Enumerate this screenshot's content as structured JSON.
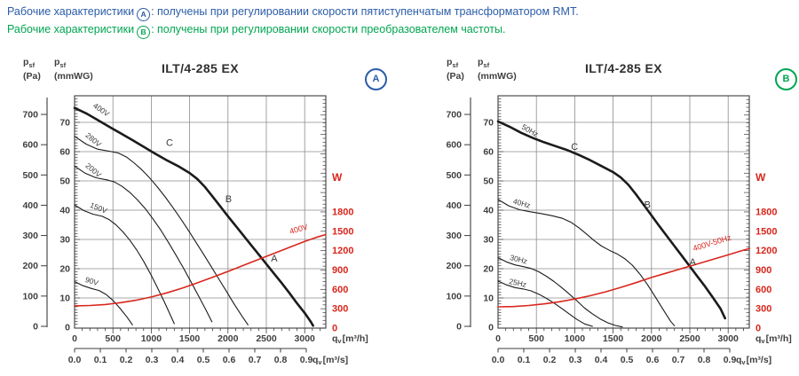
{
  "note": {
    "lines": [
      {
        "prefix": "Рабочие характеристики",
        "badge": "A",
        "suffix": ": получены при регулировании скорости пятиступенчатым трансформатором RMT.",
        "color": "#2a5ca8"
      },
      {
        "prefix": "Рабочие характеристики",
        "badge": "B",
        "suffix": ": получены при регулировании скорости преобразователем частоты.",
        "color": "#00a551"
      }
    ]
  },
  "colors": {
    "blue": "#2a5ca8",
    "green": "#00a551",
    "red": "#d9261c",
    "curve_black": "#1b1b1b",
    "grid": "#8c8c8c",
    "axis": "#3c3c3c",
    "tick_label": "#3f3f3f",
    "curve_label": "#3a3a3a"
  },
  "chart_data": [
    {
      "title": "ILT/4-285 EX",
      "badge": "A",
      "badge_color": "#2a5ca8",
      "type": "line",
      "axes": {
        "pressure_pa": {
          "name": "p",
          "sub": "sf",
          "unit": "(Pa)",
          "ticks": [
            0,
            100,
            200,
            300,
            400,
            500,
            600,
            700
          ]
        },
        "pressure_mmwg": {
          "name": "p",
          "sub": "sf",
          "unit": "(mmWG)",
          "ticks": [
            0,
            10,
            20,
            30,
            40,
            50,
            60,
            70
          ]
        },
        "flow_m3h": {
          "q": "q",
          "qsub": "v",
          "unit": "[m³/h]",
          "ticks": [
            0,
            500,
            1000,
            1500,
            2000,
            2500,
            3000
          ]
        },
        "flow_m3s": {
          "q": "q",
          "qsub": "v",
          "unit": "[m³/s]",
          "ticks": [
            "0.0",
            "0.1",
            "0.2",
            "0.3",
            "0.4",
            "0.5",
            "0.6",
            "0.7",
            "0.8",
            "0.9"
          ]
        },
        "power_w": {
          "label": "W",
          "ticks": [
            0,
            300,
            600,
            900,
            1200,
            1500,
            1800
          ]
        }
      },
      "pressure_curves": [
        {
          "name": "90V",
          "bold": false,
          "label_at": [
            215,
            146
          ],
          "label_angle": 18,
          "points": [
            [
              0,
              153
            ],
            [
              110,
              139
            ],
            [
              220,
              130
            ],
            [
              320,
              123
            ],
            [
              410,
              110
            ],
            [
              500,
              90
            ],
            [
              590,
              64
            ],
            [
              680,
              35
            ],
            [
              755,
              8
            ]
          ]
        },
        {
          "name": "150V",
          "bold": false,
          "label_at": [
            300,
            392
          ],
          "label_angle": 22,
          "points": [
            [
              0,
              410
            ],
            [
              120,
              391
            ],
            [
              240,
              379
            ],
            [
              360,
              372
            ],
            [
              450,
              361
            ],
            [
              540,
              343
            ],
            [
              630,
              320
            ],
            [
              720,
              292
            ],
            [
              810,
              259
            ],
            [
              900,
              221
            ],
            [
              990,
              179
            ],
            [
              1080,
              133
            ],
            [
              1170,
              85
            ],
            [
              1250,
              40
            ],
            [
              1300,
              12
            ]
          ]
        },
        {
          "name": "200V",
          "bold": false,
          "label_at": [
            225,
            520
          ],
          "label_angle": 40,
          "points": [
            [
              0,
              540
            ],
            [
              140,
              516
            ],
            [
              280,
              501
            ],
            [
              420,
              494
            ],
            [
              520,
              487
            ],
            [
              620,
              472
            ],
            [
              720,
              452
            ],
            [
              820,
              427
            ],
            [
              920,
              398
            ],
            [
              1020,
              364
            ],
            [
              1120,
              327
            ],
            [
              1220,
              286
            ],
            [
              1320,
              243
            ],
            [
              1420,
              198
            ],
            [
              1520,
              151
            ],
            [
              1620,
              103
            ],
            [
              1720,
              54
            ],
            [
              1790,
              18
            ]
          ]
        },
        {
          "name": "280V",
          "bold": false,
          "label_at": [
            225,
            622
          ],
          "label_angle": 40,
          "points": [
            [
              0,
              640
            ],
            [
              150,
              614
            ],
            [
              300,
              597
            ],
            [
              450,
              590
            ],
            [
              570,
              584
            ],
            [
              680,
              570
            ],
            [
              780,
              550
            ],
            [
              880,
              527
            ],
            [
              980,
              500
            ],
            [
              1080,
              470
            ],
            [
              1180,
              437
            ],
            [
              1280,
              402
            ],
            [
              1380,
              365
            ],
            [
              1480,
              326
            ],
            [
              1580,
              286
            ],
            [
              1680,
              245
            ],
            [
              1780,
              204
            ],
            [
              1880,
              162
            ],
            [
              1980,
              120
            ],
            [
              2080,
              78
            ],
            [
              2180,
              38
            ],
            [
              2260,
              8
            ]
          ]
        },
        {
          "name": "400V",
          "bold": true,
          "label_at": [
            330,
            722
          ],
          "label_angle": 34,
          "points": [
            [
              0,
              735
            ],
            [
              150,
              717
            ],
            [
              300,
              695
            ],
            [
              450,
              672
            ],
            [
              600,
              650
            ],
            [
              750,
              628
            ],
            [
              900,
              605
            ],
            [
              1050,
              582
            ],
            [
              1200,
              560
            ],
            [
              1350,
              540
            ],
            [
              1500,
              517
            ],
            [
              1600,
              497
            ],
            [
              1700,
              470
            ],
            [
              1800,
              438
            ],
            [
              1900,
              405
            ],
            [
              2000,
              372
            ],
            [
              2100,
              340
            ],
            [
              2200,
              308
            ],
            [
              2300,
              276
            ],
            [
              2400,
              244
            ],
            [
              2500,
              212
            ],
            [
              2600,
              180
            ],
            [
              2700,
              148
            ],
            [
              2800,
              115
            ],
            [
              2900,
              80
            ],
            [
              3000,
              48
            ],
            [
              3080,
              18
            ],
            [
              3110,
              5
            ]
          ]
        }
      ],
      "power_curve": {
        "name": "400V",
        "label_at": [
          2930,
          1495
        ],
        "label_angle": -16,
        "points": [
          [
            0,
            345
          ],
          [
            200,
            350
          ],
          [
            400,
            366
          ],
          [
            600,
            394
          ],
          [
            800,
            432
          ],
          [
            1000,
            482
          ],
          [
            1200,
            545
          ],
          [
            1400,
            618
          ],
          [
            1600,
            700
          ],
          [
            1800,
            788
          ],
          [
            2000,
            878
          ],
          [
            2200,
            972
          ],
          [
            2400,
            1065
          ],
          [
            2600,
            1158
          ],
          [
            2800,
            1250
          ],
          [
            3000,
            1342
          ],
          [
            3150,
            1405
          ],
          [
            3270,
            1448
          ]
        ]
      },
      "op_points": [
        {
          "label": "C",
          "flow": 1180,
          "pa": 618
        },
        {
          "label": "B",
          "flow": 1950,
          "pa": 430
        },
        {
          "label": "A",
          "flow": 2545,
          "pa": 230
        }
      ]
    },
    {
      "title": "ILT/4-285 EX",
      "badge": "B",
      "badge_color": "#00a551",
      "type": "line",
      "axes": {
        "pressure_pa": {
          "name": "p",
          "sub": "sf",
          "unit": "(Pa)",
          "ticks": [
            0,
            100,
            200,
            300,
            400,
            500,
            600,
            700
          ]
        },
        "pressure_mmwg": {
          "name": "p",
          "sub": "sf",
          "unit": "(mmWG)",
          "ticks": [
            0,
            10,
            20,
            30,
            40,
            50,
            60,
            70
          ]
        },
        "flow_m3h": {
          "q": "q",
          "qsub": "v",
          "unit": "[m³/h]",
          "ticks": [
            0,
            500,
            1000,
            1500,
            2000,
            2500,
            3000
          ]
        },
        "flow_m3s": {
          "q": "q",
          "qsub": "v",
          "unit": "[m³/s]",
          "ticks": [
            "0.0",
            "0.1",
            "0.2",
            "0.3",
            "0.4",
            "0.5",
            "0.6",
            "0.7",
            "0.8",
            "0.9"
          ]
        },
        "power_w": {
          "label": "W",
          "ticks": [
            0,
            300,
            600,
            900,
            1200,
            1500,
            1800
          ]
        }
      },
      "pressure_curves": [
        {
          "name": "25Hz",
          "bold": false,
          "label_at": [
            250,
            140
          ],
          "label_angle": 12,
          "points": [
            [
              0,
              155
            ],
            [
              110,
              142
            ],
            [
              220,
              133
            ],
            [
              330,
              128
            ],
            [
              430,
              122
            ],
            [
              530,
              111
            ],
            [
              630,
              97
            ],
            [
              730,
              81
            ],
            [
              830,
              63
            ],
            [
              930,
              44
            ],
            [
              1030,
              26
            ],
            [
              1130,
              11
            ],
            [
              1230,
              3
            ]
          ]
        },
        {
          "name": "30Hz",
          "bold": false,
          "label_at": [
            260,
            219
          ],
          "label_angle": 14,
          "points": [
            [
              0,
              233
            ],
            [
              110,
              219
            ],
            [
              220,
              209
            ],
            [
              330,
              203
            ],
            [
              430,
              197
            ],
            [
              530,
              186
            ],
            [
              630,
              171
            ],
            [
              730,
              153
            ],
            [
              830,
              133
            ],
            [
              930,
              111
            ],
            [
              1030,
              88
            ],
            [
              1130,
              64
            ],
            [
              1230,
              45
            ],
            [
              1330,
              28
            ],
            [
              1430,
              15
            ],
            [
              1530,
              6
            ],
            [
              1620,
              1
            ]
          ]
        },
        {
          "name": "40Hz",
          "bold": false,
          "label_at": [
            300,
            407
          ],
          "label_angle": 16,
          "points": [
            [
              0,
              428
            ],
            [
              140,
              407
            ],
            [
              280,
              394
            ],
            [
              420,
              387
            ],
            [
              560,
              381
            ],
            [
              700,
              374
            ],
            [
              840,
              365
            ],
            [
              950,
              352
            ],
            [
              1050,
              334
            ],
            [
              1150,
              313
            ],
            [
              1250,
              291
            ],
            [
              1350,
              272
            ],
            [
              1450,
              258
            ],
            [
              1550,
              246
            ],
            [
              1650,
              230
            ],
            [
              1750,
              208
            ],
            [
              1850,
              178
            ],
            [
              1950,
              142
            ],
            [
              2050,
              102
            ],
            [
              2150,
              60
            ],
            [
              2250,
              20
            ],
            [
              2300,
              5
            ]
          ]
        },
        {
          "name": "50Hz",
          "bold": true,
          "label_at": [
            400,
            652
          ],
          "label_angle": 30,
          "points": [
            [
              0,
              690
            ],
            [
              150,
              672
            ],
            [
              300,
              652
            ],
            [
              450,
              635
            ],
            [
              600,
              620
            ],
            [
              750,
              607
            ],
            [
              900,
              594
            ],
            [
              1050,
              578
            ],
            [
              1200,
              560
            ],
            [
              1350,
              540
            ],
            [
              1500,
              520
            ],
            [
              1600,
              502
            ],
            [
              1700,
              477
            ],
            [
              1800,
              445
            ],
            [
              1900,
              410
            ],
            [
              2000,
              375
            ],
            [
              2100,
              340
            ],
            [
              2200,
              306
            ],
            [
              2300,
              272
            ],
            [
              2400,
              238
            ],
            [
              2500,
              204
            ],
            [
              2600,
              170
            ],
            [
              2700,
              136
            ],
            [
              2800,
              100
            ],
            [
              2900,
              62
            ],
            [
              2960,
              30
            ]
          ]
        }
      ],
      "power_curve": {
        "name": "400V-50Hz",
        "label_at": [
          2800,
          1280
        ],
        "label_angle": -17,
        "points": [
          [
            0,
            330
          ],
          [
            200,
            334
          ],
          [
            400,
            350
          ],
          [
            600,
            375
          ],
          [
            800,
            408
          ],
          [
            1000,
            450
          ],
          [
            1200,
            502
          ],
          [
            1400,
            562
          ],
          [
            1600,
            630
          ],
          [
            1800,
            705
          ],
          [
            2000,
            785
          ],
          [
            2200,
            855
          ],
          [
            2400,
            925
          ],
          [
            2600,
            995
          ],
          [
            2800,
            1065
          ],
          [
            3000,
            1135
          ],
          [
            3150,
            1190
          ],
          [
            3280,
            1235
          ]
        ]
      },
      "op_points": [
        {
          "label": "C",
          "flow": 940,
          "pa": 605
        },
        {
          "label": "B",
          "flow": 1890,
          "pa": 410
        },
        {
          "label": "A",
          "flow": 2480,
          "pa": 218
        }
      ]
    }
  ]
}
